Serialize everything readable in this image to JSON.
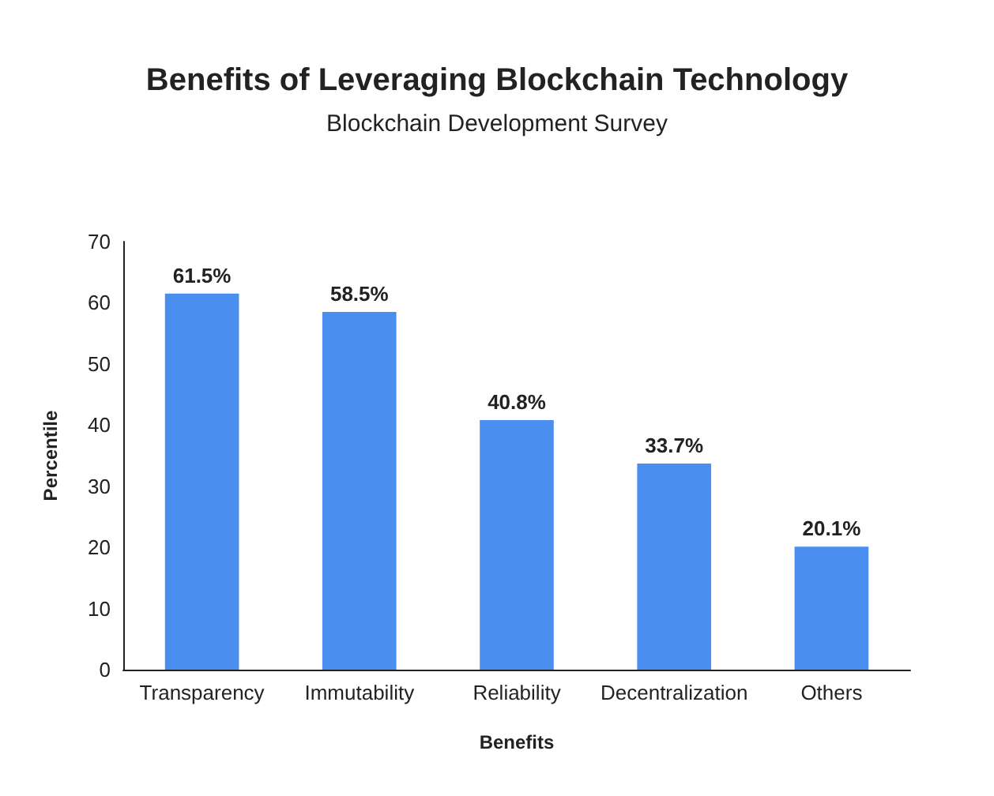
{
  "chart_data": {
    "type": "bar",
    "title": "Benefits of Leveraging Blockchain Technology",
    "subtitle": "Blockchain Development Survey",
    "xlabel": "Benefits",
    "ylabel": "Percentile",
    "categories": [
      "Transparency",
      "Immutability",
      "Reliability",
      "Decentralization",
      "Others"
    ],
    "values": [
      61.5,
      58.5,
      40.8,
      33.7,
      20.1
    ],
    "value_labels": [
      "61.5%",
      "58.5%",
      "40.8%",
      "33.7%",
      "20.1%"
    ],
    "color": "#4a8ef0",
    "ylim": [
      0,
      70
    ],
    "yticks": [
      0,
      10,
      20,
      30,
      40,
      50,
      60,
      70
    ],
    "grid": false
  }
}
